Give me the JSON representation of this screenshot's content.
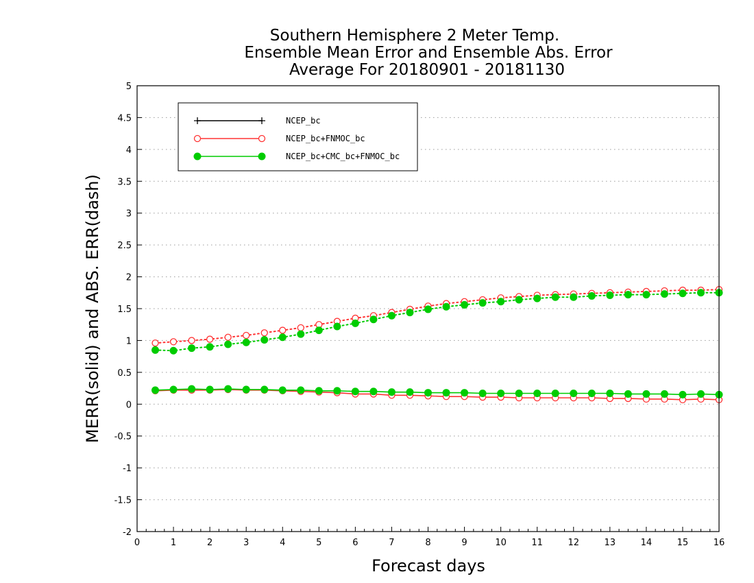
{
  "chart_data": {
    "type": "line",
    "title_lines": [
      "Southern Hemisphere 2 Meter Temp.",
      "Ensemble Mean Error and Ensemble Abs. Error",
      "Average For 20180901 - 20181130"
    ],
    "xlabel": "Forecast days",
    "ylabel": "MERR(solid) and ABS. ERR(dash)",
    "xlim": [
      0,
      16
    ],
    "ylim": [
      -2,
      5
    ],
    "x_ticks": [
      0,
      1,
      2,
      3,
      4,
      5,
      6,
      7,
      8,
      9,
      10,
      11,
      12,
      13,
      14,
      15,
      16
    ],
    "y_ticks": [
      -2,
      -1.5,
      -1,
      -0.5,
      0,
      0.5,
      1,
      1.5,
      2,
      2.5,
      3,
      3.5,
      4,
      4.5,
      5
    ],
    "grid": "horizontal dotted",
    "legend_position": "top-left",
    "x": [
      0.5,
      1,
      1.5,
      2,
      2.5,
      3,
      3.5,
      4,
      4.5,
      5,
      5.5,
      6,
      6.5,
      7,
      7.5,
      8,
      8.5,
      9,
      9.5,
      10,
      10.5,
      11,
      11.5,
      12,
      12.5,
      13,
      13.5,
      14,
      14.5,
      15,
      15.5,
      16
    ],
    "series": [
      {
        "name": "NCEP_bc",
        "color": "#000000",
        "marker": "plus",
        "merr": [],
        "abs_err": []
      },
      {
        "name": "NCEP_bc+FNMOC_bc",
        "color": "#ff3333",
        "marker": "open-circle",
        "merr": [
          0.21,
          0.22,
          0.22,
          0.22,
          0.23,
          0.22,
          0.22,
          0.21,
          0.2,
          0.19,
          0.18,
          0.16,
          0.16,
          0.14,
          0.14,
          0.13,
          0.12,
          0.12,
          0.11,
          0.11,
          0.1,
          0.1,
          0.1,
          0.1,
          0.1,
          0.09,
          0.09,
          0.08,
          0.08,
          0.07,
          0.08,
          0.07
        ],
        "abs_err": [
          0.96,
          0.98,
          1.0,
          1.02,
          1.05,
          1.08,
          1.12,
          1.16,
          1.2,
          1.25,
          1.3,
          1.35,
          1.39,
          1.44,
          1.49,
          1.54,
          1.58,
          1.61,
          1.64,
          1.67,
          1.69,
          1.71,
          1.72,
          1.73,
          1.74,
          1.75,
          1.76,
          1.77,
          1.78,
          1.79,
          1.79,
          1.8
        ]
      },
      {
        "name": "NCEP_bc+CMC_bc+FNMOC_bc",
        "color": "#00cc00",
        "marker": "filled-circle",
        "merr": [
          0.22,
          0.23,
          0.24,
          0.23,
          0.24,
          0.23,
          0.23,
          0.22,
          0.22,
          0.21,
          0.21,
          0.2,
          0.2,
          0.19,
          0.19,
          0.18,
          0.18,
          0.18,
          0.17,
          0.17,
          0.17,
          0.17,
          0.17,
          0.17,
          0.17,
          0.17,
          0.16,
          0.16,
          0.16,
          0.15,
          0.16,
          0.15
        ],
        "abs_err": [
          0.85,
          0.84,
          0.88,
          0.9,
          0.94,
          0.97,
          1.01,
          1.05,
          1.1,
          1.16,
          1.22,
          1.27,
          1.33,
          1.39,
          1.44,
          1.49,
          1.53,
          1.56,
          1.59,
          1.61,
          1.64,
          1.66,
          1.68,
          1.68,
          1.7,
          1.71,
          1.72,
          1.72,
          1.73,
          1.74,
          1.75,
          1.75
        ]
      }
    ]
  }
}
